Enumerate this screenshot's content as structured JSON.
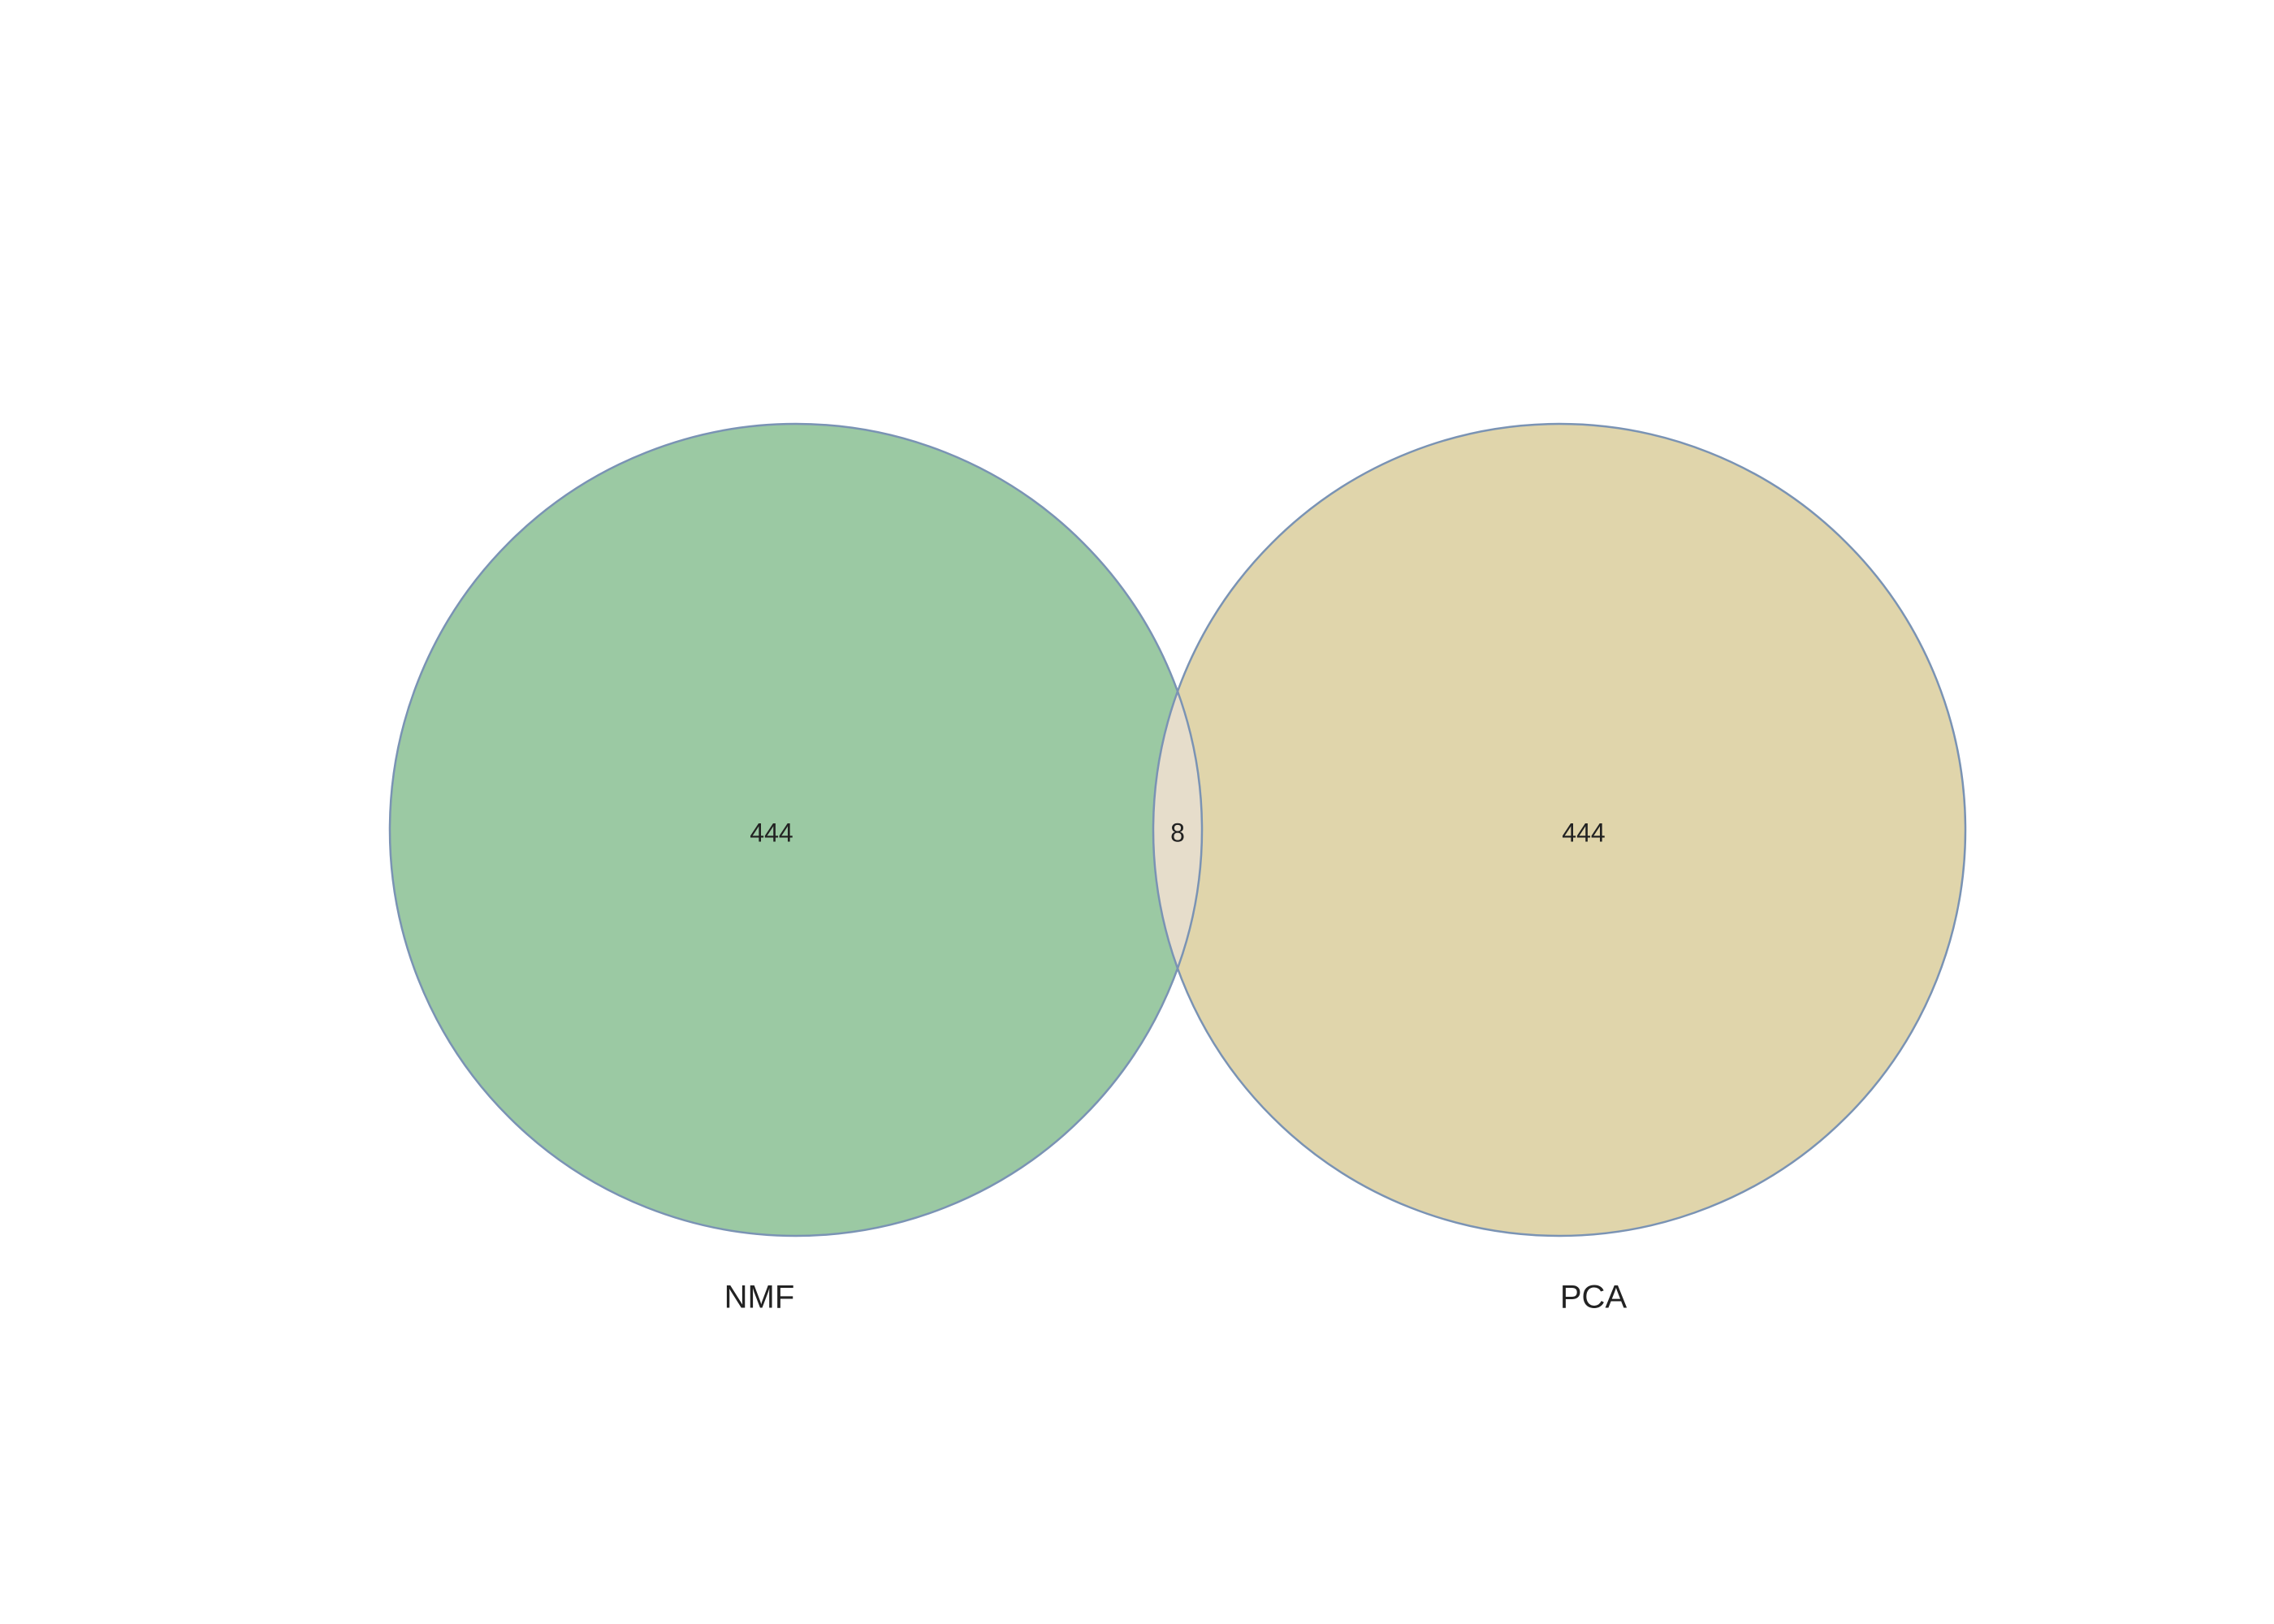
{
  "venn": {
    "sets": [
      {
        "name": "NMF",
        "only_count": "444",
        "color": "#9BC9A3"
      },
      {
        "name": "PCA",
        "only_count": "444",
        "color": "#E0D5AB"
      }
    ],
    "intersection": {
      "count": "8",
      "color": "#E6DDCB"
    },
    "stroke_color": "#7A93B4"
  }
}
